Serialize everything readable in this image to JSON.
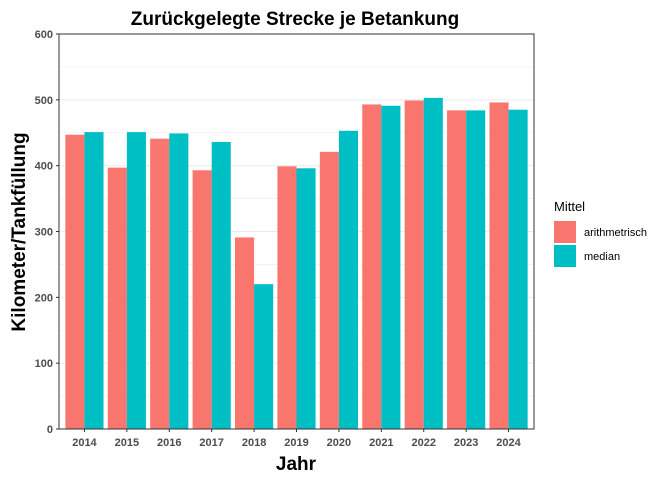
{
  "colors": {
    "arithmetrisch": "#F8766D",
    "median": "#00BFC4",
    "grid": "#ebebeb",
    "panel_border": "#333333",
    "tick_text": "#4d4d4d"
  },
  "chart_data": {
    "type": "bar",
    "title": "Zurückgelegte Strecke je Betankung",
    "xlabel": "Jahr",
    "ylabel": "Kilometer/Tankfüllung",
    "categories": [
      "2014",
      "2015",
      "2016",
      "2017",
      "2018",
      "2019",
      "2020",
      "2021",
      "2022",
      "2023",
      "2024"
    ],
    "series": [
      {
        "name": "arithmetrisch",
        "values": [
          447,
          397,
          441,
          393,
          291,
          399,
          421,
          493,
          499,
          484,
          496
        ]
      },
      {
        "name": "median",
        "values": [
          451,
          451,
          449,
          436,
          220,
          396,
          453,
          491,
          503,
          484,
          485
        ]
      }
    ],
    "ylim": [
      0,
      600
    ],
    "yticks": [
      0,
      100,
      200,
      300,
      400,
      500,
      600
    ],
    "grid": true,
    "legend": {
      "title": "Mittel",
      "position": "right"
    }
  }
}
